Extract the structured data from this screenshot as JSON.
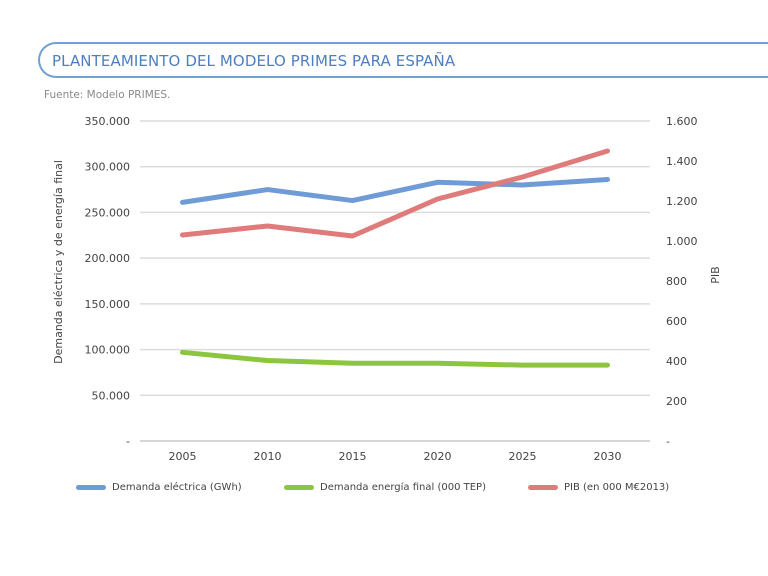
{
  "header": {
    "title": "PLANTEAMIENTO DEL MODELO PRIMES PARA ESPAÑA",
    "source": "Fuente: Modelo PRIMES."
  },
  "chart_data": {
    "type": "line",
    "title": "PLANTEAMIENTO DEL MODELO PRIMES PARA ESPAÑA",
    "subtitle": "Fuente: Modelo PRIMES.",
    "categories": [
      "2005",
      "2010",
      "2015",
      "2020",
      "2025",
      "2030"
    ],
    "ylabel": "Demanda eléctrica  y de energía final",
    "y2label": "PIB",
    "ylim": [
      0,
      350000
    ],
    "y2lim": [
      0,
      1600
    ],
    "yticks": [
      "-",
      "50.000",
      "100.000",
      "150.000",
      "200.000",
      "250.000",
      "300.000",
      "350.000"
    ],
    "y2ticks": [
      "-",
      "200",
      "400",
      "600",
      "800",
      "1.000",
      "1.200",
      "1.400",
      "1.600"
    ],
    "grid": true,
    "legend_position": "bottom",
    "series": [
      {
        "name": "Demanda eléctrica (GWh)",
        "axis": "left",
        "color": "#6f9bd6",
        "values": [
          261000,
          275000,
          263000,
          283000,
          280000,
          286000
        ]
      },
      {
        "name": "Demanda energía final (000 TEP)",
        "axis": "left",
        "color": "#8cc63e",
        "values": [
          97000,
          88000,
          85000,
          85000,
          83000,
          83000
        ]
      },
      {
        "name": "PIB (en 000 M€2013)",
        "axis": "right",
        "color": "#e07b7b",
        "values": [
          1030,
          1075,
          1025,
          1210,
          1320,
          1450
        ]
      }
    ]
  }
}
